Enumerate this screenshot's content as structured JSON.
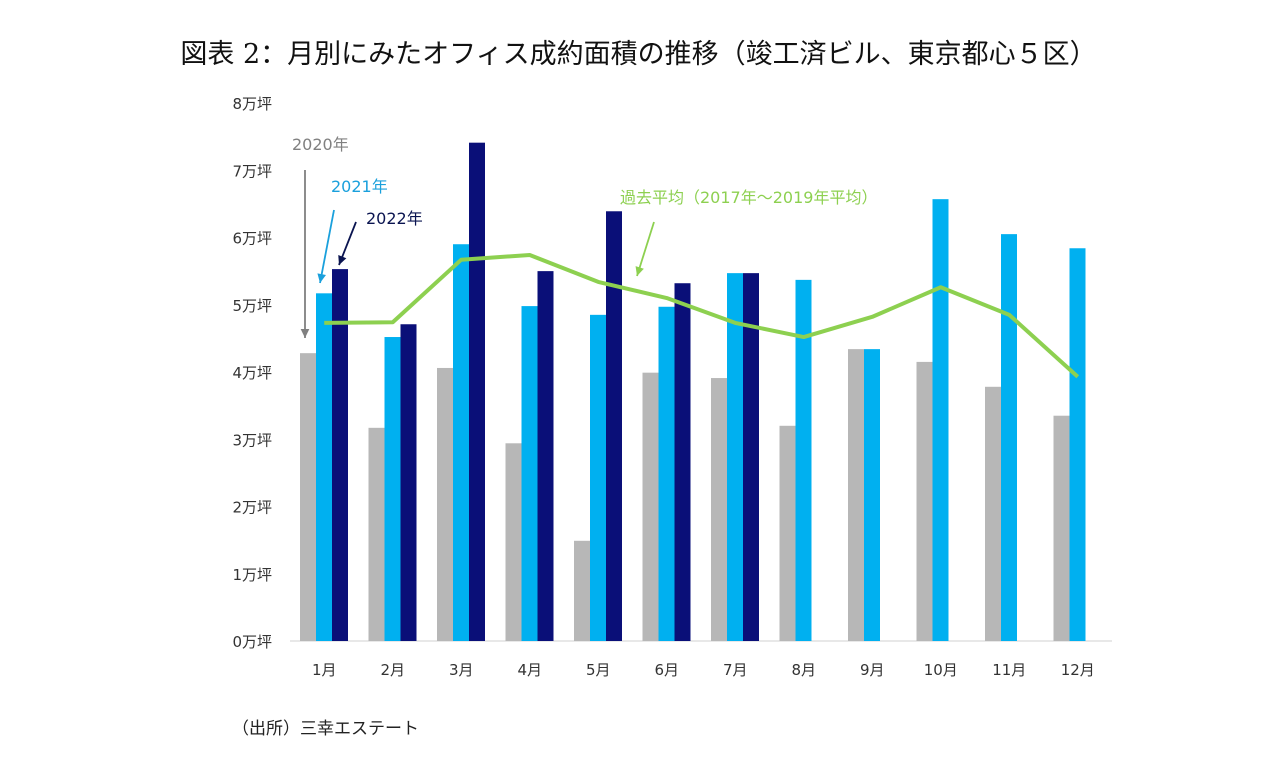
{
  "chart_data": {
    "type": "bar+line",
    "title": "図表 2：月別にみたオフィス成約面積の推移（竣工済ビル、東京都心５区）",
    "source": "（出所）三幸エステート",
    "categories": [
      "1月",
      "2月",
      "3月",
      "4月",
      "5月",
      "6月",
      "7月",
      "8月",
      "9月",
      "10月",
      "11月",
      "12月"
    ],
    "ylim": [
      0,
      8
    ],
    "yticks": [
      "0万坪",
      "1万坪",
      "2万坪",
      "3万坪",
      "4万坪",
      "5万坪",
      "6万坪",
      "7万坪",
      "8万坪"
    ],
    "grid": false,
    "series": [
      {
        "name": "2020年",
        "type": "bar",
        "color": "#b7b7b7",
        "values": [
          4.28,
          3.17,
          4.06,
          2.94,
          1.49,
          3.99,
          3.91,
          3.2,
          4.34,
          4.15,
          3.78,
          3.35
        ]
      },
      {
        "name": "2021年",
        "type": "bar",
        "color": "#00b0f0",
        "values": [
          5.17,
          4.52,
          5.9,
          4.98,
          4.85,
          4.97,
          5.47,
          5.37,
          4.34,
          6.57,
          6.05,
          5.84
        ]
      },
      {
        "name": "2022年",
        "type": "bar",
        "color": "#0a0f78",
        "values": [
          5.53,
          4.71,
          7.41,
          5.5,
          6.39,
          5.32,
          5.47,
          null,
          null,
          null,
          null,
          null
        ]
      },
      {
        "name": "過去平均（2017年～2019年平均）",
        "type": "line",
        "color": "#8dd050",
        "values": [
          4.73,
          4.74,
          5.67,
          5.74,
          5.34,
          5.1,
          4.73,
          4.52,
          4.82,
          5.26,
          4.85,
          3.93
        ]
      }
    ]
  }
}
